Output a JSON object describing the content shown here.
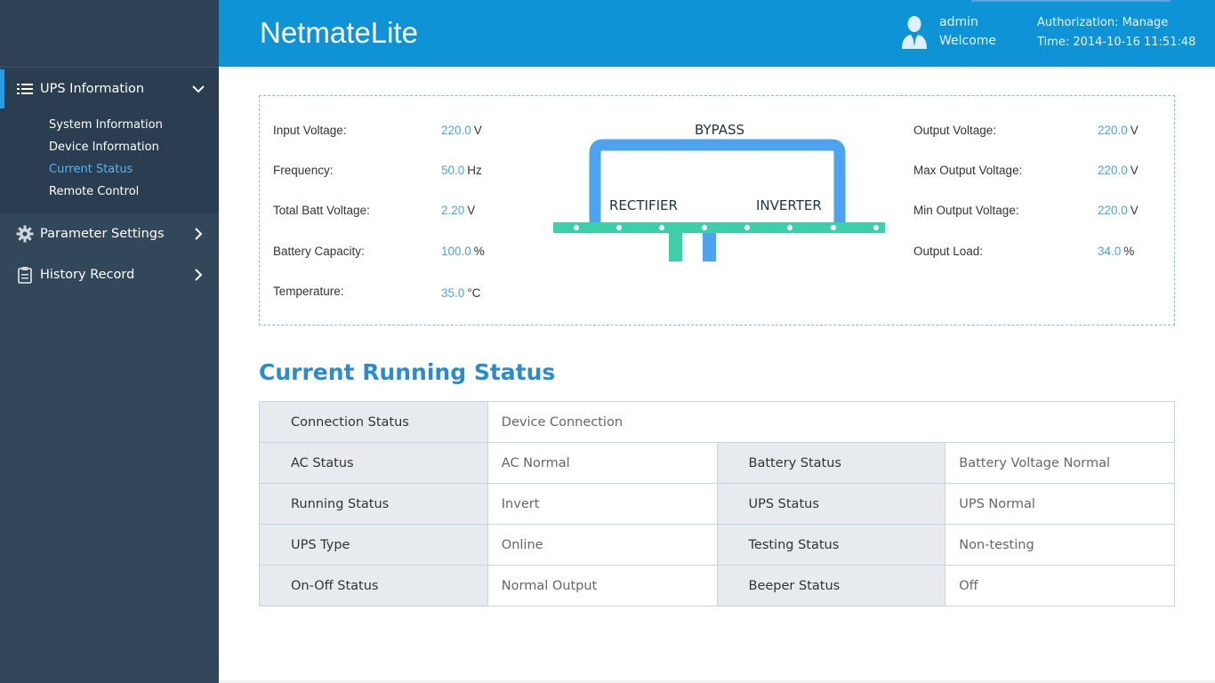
{
  "header": {
    "app_title": "NetmateLite",
    "user_name": "admin",
    "welcome": "Welcome",
    "authorization": "Authorization: Manage",
    "time": "Time: 2014-10-16 11:51:48"
  },
  "sidebar": {
    "sections": [
      {
        "label": "UPS Information",
        "icon": "list-icon",
        "expanded": true,
        "items": [
          "System Information",
          "Device Information",
          "Current Status",
          "Remote Control"
        ],
        "current": "Current Status"
      },
      {
        "label": "Parameter Settings",
        "icon": "gear-icon",
        "expanded": false
      },
      {
        "label": "History Record",
        "icon": "clipboard-icon",
        "expanded": false
      }
    ]
  },
  "metrics": {
    "left": [
      {
        "label": "Input Voltage:",
        "value": "220.0",
        "unit": "V"
      },
      {
        "label": "Frequency:",
        "value": "50.0",
        "unit": "Hz"
      },
      {
        "label": "Total Batt Voltage:",
        "value": "2.20",
        "unit": "V"
      },
      {
        "label": "Battery Capacity:",
        "value": "100.0",
        "unit": "%"
      },
      {
        "label": "Temperature:",
        "value": "35.0",
        "unit": "°C"
      }
    ],
    "right": [
      {
        "label": "Output Voltage:",
        "value": "220.0",
        "unit": "V"
      },
      {
        "label": "Max Output Voltage:",
        "value": "220.0",
        "unit": "V"
      },
      {
        "label": "Min Output Voltage:",
        "value": "220.0",
        "unit": "V"
      },
      {
        "label": "Output Load:",
        "value": "34.0",
        "unit": "%"
      }
    ]
  },
  "diagram": {
    "bypass": "BYPASS",
    "rectifier": "RECTIFIER",
    "inverter": "INVERTER",
    "colors": {
      "bypass": "#4da3f0",
      "bus": "#3ecfa8"
    }
  },
  "running_status": {
    "title": "Current Running Status",
    "connection": {
      "label": "Connection Status",
      "value": "Device Connection"
    },
    "rows": [
      [
        {
          "label": "AC Status",
          "value": "AC Normal"
        },
        {
          "label": "Battery Status",
          "value": "Battery Voltage Normal"
        }
      ],
      [
        {
          "label": "Running Status",
          "value": "Invert"
        },
        {
          "label": "UPS Status",
          "value": "UPS Normal"
        }
      ],
      [
        {
          "label": "UPS Type",
          "value": "Online"
        },
        {
          "label": "Testing Status",
          "value": "Non-testing"
        }
      ],
      [
        {
          "label": "On-Off Status",
          "value": "Normal Output"
        },
        {
          "label": "Beeper Status",
          "value": "Off"
        }
      ]
    ]
  }
}
